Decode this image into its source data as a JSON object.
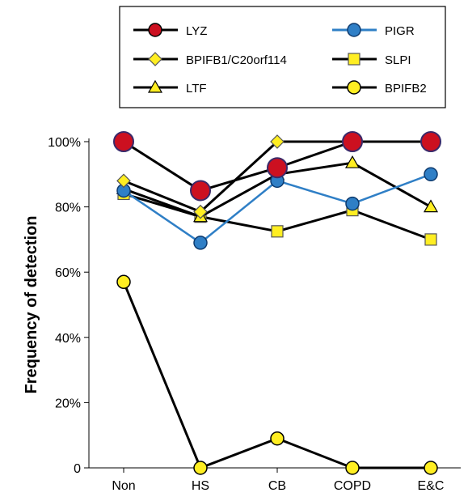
{
  "chart_data": {
    "type": "line",
    "title": "",
    "xlabel": "",
    "ylabel": "Frequency of detection",
    "categories": [
      "Non",
      "HS",
      "CB",
      "COPD",
      "E&C"
    ],
    "yticks": [
      "0",
      "20%",
      "40%",
      "60%",
      "80%",
      "100%"
    ],
    "ylim": [
      0,
      100
    ],
    "grid": false,
    "legend": {
      "placement": "top",
      "columns": 2,
      "order": [
        "LYZ",
        "PIGR",
        "BPIFB1/C20orf114",
        "SLPI",
        "LTF",
        "BPIFB2"
      ]
    },
    "series": [
      {
        "name": "SLPI",
        "marker": "square",
        "line_color": "#000000",
        "marker_fill": "#ffee22",
        "values": [
          84,
          77,
          72.5,
          79,
          70
        ]
      },
      {
        "name": "LTF",
        "marker": "triangle",
        "line_color": "#000000",
        "marker_fill": "#ffee22",
        "values": [
          85.5,
          77,
          90,
          93.5,
          80
        ]
      },
      {
        "name": "PIGR",
        "marker": "circle",
        "line_color": "#2f7fc6",
        "marker_fill": "#2f7fc6",
        "values": [
          85,
          69,
          88,
          81,
          90
        ]
      },
      {
        "name": "BPIFB1/C20orf114",
        "marker": "diamond",
        "line_color": "#000000",
        "marker_fill": "#ffee22",
        "values": [
          88,
          78.5,
          100,
          100,
          100
        ]
      },
      {
        "name": "LYZ",
        "marker": "circle-large",
        "line_color": "#000000",
        "marker_fill": "#cc1020",
        "values": [
          100,
          85,
          92,
          100,
          100
        ]
      },
      {
        "name": "BPIFB2",
        "marker": "circle",
        "line_color": "#000000",
        "marker_fill": "#ffee22",
        "values": [
          57,
          0,
          9,
          0,
          0
        ]
      }
    ]
  }
}
